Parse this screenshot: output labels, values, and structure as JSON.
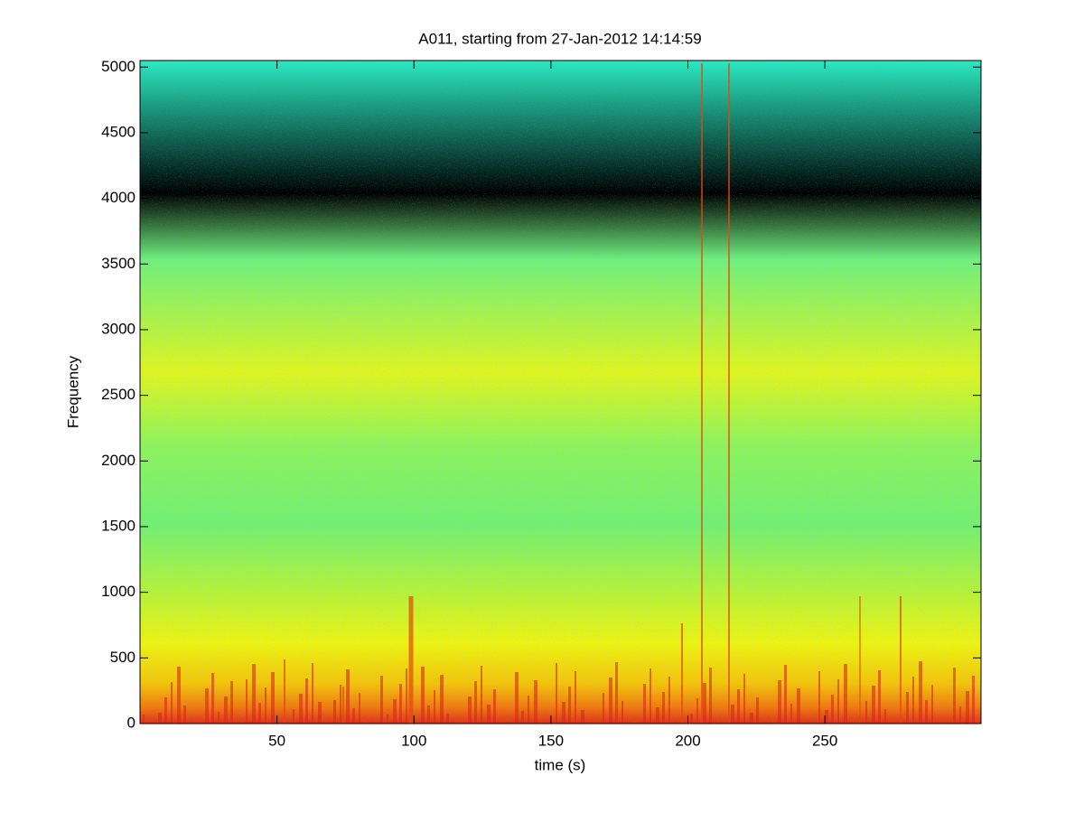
{
  "chart_data": {
    "type": "spectrogram",
    "title": "A011, starting from 27-Jan-2012 14:14:59",
    "x_label": "time (s)",
    "y_label": "Frequency",
    "xlim": [
      0,
      307
    ],
    "xticks": [
      50,
      100,
      150,
      200,
      250
    ],
    "ylim": [
      0,
      5050
    ],
    "yticks": [
      0,
      500,
      1000,
      1500,
      2000,
      2500,
      3000,
      3500,
      4000,
      4500,
      5000
    ]
  }
}
